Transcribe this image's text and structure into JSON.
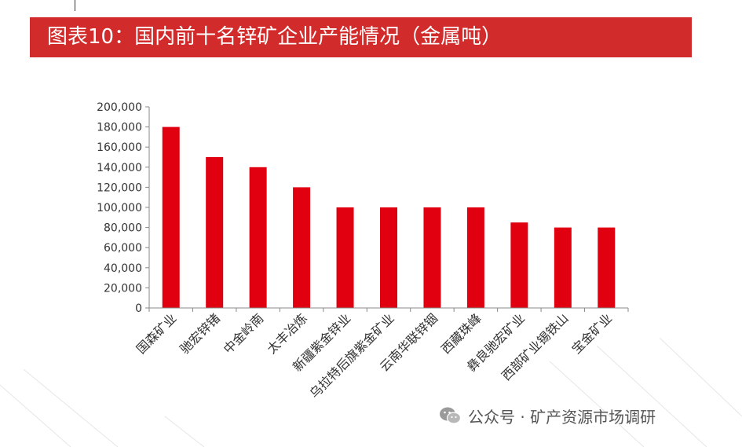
{
  "header": {
    "title": "图表10：国内前十名锌矿企业产能情况（金属吨）"
  },
  "watermark": {
    "text": "公众号 · 矿产资源市场调研",
    "icon": "wechat-icon"
  },
  "colors": {
    "bar": "#e0000f",
    "header": "#d22b2b",
    "axis": "#888888"
  },
  "chart_data": {
    "type": "bar",
    "title": "",
    "xlabel": "",
    "ylabel": "",
    "categories": [
      "国森矿业",
      "驰宏锌锗",
      "中金岭南",
      "太丰冶炼",
      "新疆紫金锌业",
      "乌拉特后旗紫金矿业",
      "云南华联锌铟",
      "西藏珠峰",
      "彝良驰宏矿业",
      "西部矿业锡铁山",
      "宝金矿业"
    ],
    "values": [
      180000,
      150000,
      140000,
      120000,
      100000,
      100000,
      100000,
      100000,
      85000,
      80000,
      80000
    ],
    "ylim": [
      0,
      200000
    ],
    "yticks": [
      "0",
      "20,000",
      "40,000",
      "60,000",
      "80,000",
      "100,000",
      "120,000",
      "140,000",
      "160,000",
      "180,000",
      "200,000"
    ],
    "grid": false,
    "legend": "none"
  }
}
